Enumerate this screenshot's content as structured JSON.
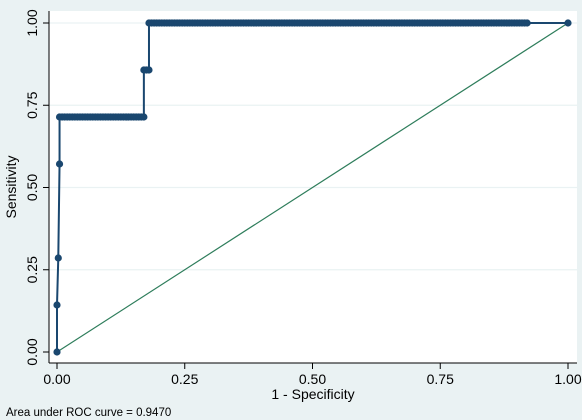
{
  "chart_data": {
    "type": "line",
    "title": "",
    "xlabel": "1 - Specificity",
    "ylabel": "Sensitivity",
    "xlim": [
      0,
      1
    ],
    "ylim": [
      0,
      1
    ],
    "x_ticks": [
      0,
      0.25,
      0.5,
      0.75,
      1
    ],
    "x_tick_labels": [
      "0.00",
      "0.25",
      "0.50",
      "0.75",
      "1.00"
    ],
    "y_ticks": [
      0,
      0.25,
      0.5,
      0.75,
      1
    ],
    "y_tick_labels": [
      "0.00",
      "0.25",
      "0.50",
      "0.75",
      "1.00"
    ],
    "grid": "horizontal",
    "legend": "none",
    "note": "Area under ROC curve = 0.9470",
    "colors": {
      "background": "#eaf2f3",
      "plot_area": "#ffffff",
      "curve": "#1a476f",
      "reference": "#2e7d5b",
      "grid": "#eaf2f3",
      "axis": "#000000"
    },
    "series": [
      {
        "type": "roc",
        "x": [
          0,
          0,
          0.0025,
          0.005,
          0.005,
          0.17,
          0.17,
          0.18,
          0.18,
          0.92,
          1
        ],
        "y": [
          0,
          0.1429,
          0.2857,
          0.5714,
          0.7143,
          0.7143,
          0.8571,
          0.8571,
          1,
          1,
          1
        ],
        "point_runs": [
          {
            "x_start": 0,
            "x_end": 0,
            "y": 0,
            "count": 1
          },
          {
            "x_start": 0,
            "x_end": 0,
            "y": 0.1429,
            "count": 1
          },
          {
            "x_start": 0.0025,
            "x_end": 0.0025,
            "y": 0.2857,
            "count": 1
          },
          {
            "x_start": 0.005,
            "x_end": 0.005,
            "y": 0.5714,
            "count": 1
          },
          {
            "x_start": 0.005,
            "x_end": 0.17,
            "y": 0.7143,
            "count": 34
          },
          {
            "x_start": 0.17,
            "x_end": 0.18,
            "y": 0.8571,
            "count": 3
          },
          {
            "x_start": 0.18,
            "x_end": 0.92,
            "y": 1,
            "count": 149
          },
          {
            "x_start": 1,
            "x_end": 1,
            "y": 1,
            "count": 1
          }
        ]
      },
      {
        "type": "reference",
        "x": [
          0,
          1
        ],
        "y": [
          0,
          1
        ]
      }
    ]
  }
}
